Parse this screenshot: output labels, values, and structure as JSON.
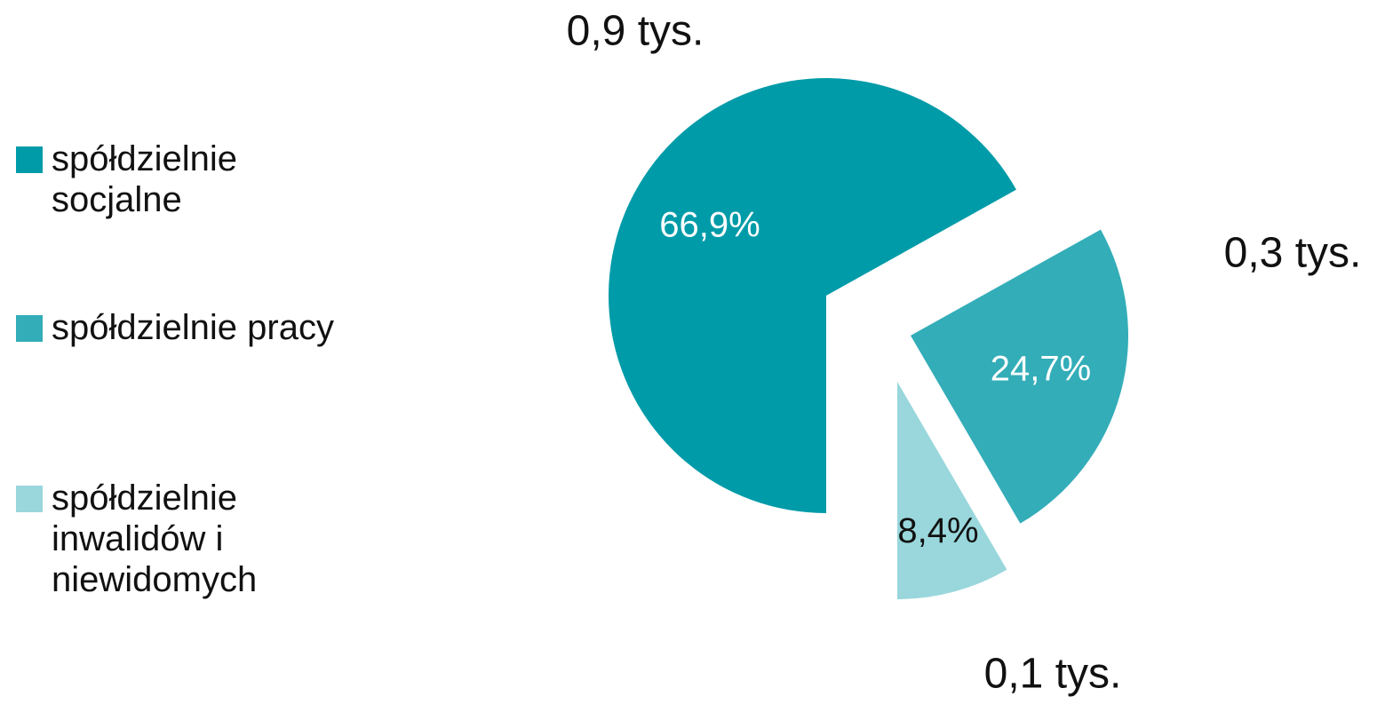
{
  "chart_data": {
    "type": "pie",
    "categories": [
      "spółdzielnie socjalne",
      "spółdzielnie pracy",
      "spółdzielnie inwalidów i niewidomych"
    ],
    "values": [
      66.9,
      24.7,
      8.4
    ],
    "value_labels": [
      "66,9%",
      "24,7%",
      "8,4%"
    ],
    "colors": [
      "#009ba8",
      "#33adb8",
      "#99d7dc"
    ],
    "annotations": [
      "0,9 tys.",
      "0,3 tys.",
      "0,1 tys."
    ]
  }
}
